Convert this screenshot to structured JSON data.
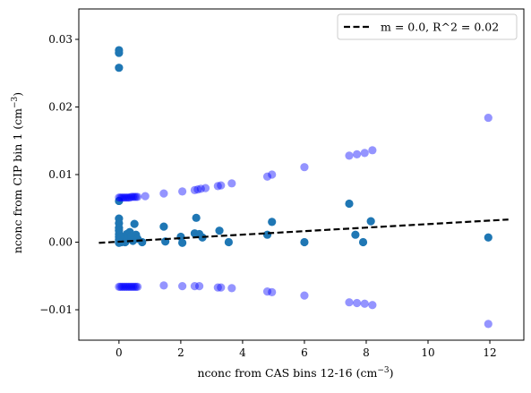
{
  "chart_data": {
    "type": "scatter",
    "xlabel": "nconc from CAS bins 12-16 (cm",
    "xlabel_sup": "−3",
    "xlabel_end": ")",
    "ylabel": "nconc from CIP bin 1 (cm",
    "ylabel_sup": "−3",
    "ylabel_end": ")",
    "xlim": [
      -1.3,
      13.1
    ],
    "ylim": [
      -0.0145,
      0.0345
    ],
    "x_ticks": [
      0,
      2,
      4,
      6,
      8,
      10,
      12
    ],
    "x_tick_labels": [
      "0",
      "2",
      "4",
      "6",
      "8",
      "10",
      "12"
    ],
    "y_ticks": [
      -0.01,
      0.0,
      0.01,
      0.02,
      0.03
    ],
    "y_tick_labels": [
      "−0.01",
      "0.00",
      "0.01",
      "0.02",
      "0.03"
    ],
    "grid": false,
    "legend_placement": "top-right",
    "legend": [
      {
        "label": "m = 0.0, R^2 = 0.02",
        "style": "dashed-line",
        "color": "#000000"
      }
    ],
    "fit_line": {
      "x": [
        -0.65,
        12.6
      ],
      "y": [
        -0.0001,
        0.00335
      ]
    },
    "series": [
      {
        "color": "#1f77b4",
        "opacity": 1.0,
        "points": [
          [
            0.0,
            0.0284
          ],
          [
            0.0,
            0.028
          ],
          [
            0.0,
            0.0258
          ],
          [
            0.0,
            0.0061
          ],
          [
            0.0,
            0.0035
          ],
          [
            0.0,
            0.0028
          ],
          [
            0.0,
            0.0021
          ],
          [
            0.0,
            0.0017
          ],
          [
            0.0,
            0.0012
          ],
          [
            0.0,
            0.0008
          ],
          [
            0.0,
            0.0004
          ],
          [
            0.0,
            0.0001
          ],
          [
            0.0,
            -0.0001
          ],
          [
            0.05,
            0.0006
          ],
          [
            0.08,
            0.0
          ],
          [
            0.1,
            0.0008
          ],
          [
            0.15,
            0.0003
          ],
          [
            0.2,
            0.0
          ],
          [
            0.25,
            0.0012
          ],
          [
            0.3,
            0.0006
          ],
          [
            0.35,
            0.0015
          ],
          [
            0.4,
            0.0009
          ],
          [
            0.45,
            0.0002
          ],
          [
            0.5,
            0.0027
          ],
          [
            0.55,
            0.0011
          ],
          [
            0.6,
            0.0005
          ],
          [
            0.75,
            0.0
          ],
          [
            1.45,
            0.0023
          ],
          [
            1.5,
            0.0001
          ],
          [
            2.0,
            0.0008
          ],
          [
            2.05,
            -0.0001
          ],
          [
            2.45,
            0.0013
          ],
          [
            2.5,
            0.0036
          ],
          [
            2.6,
            0.0012
          ],
          [
            2.7,
            0.0007
          ],
          [
            3.25,
            0.0017
          ],
          [
            3.55,
            0.0
          ],
          [
            4.8,
            0.0011
          ],
          [
            4.95,
            0.003
          ],
          [
            6.0,
            0.0
          ],
          [
            7.45,
            0.0057
          ],
          [
            7.65,
            0.0011
          ],
          [
            7.9,
            0.0
          ],
          [
            8.15,
            0.0031
          ],
          [
            11.95,
            0.0007
          ]
        ]
      },
      {
        "color": "#0000ff",
        "opacity": 0.42,
        "points": [
          [
            0.0,
            0.0066
          ],
          [
            0.05,
            0.0066
          ],
          [
            0.1,
            0.0066
          ],
          [
            0.15,
            0.0066
          ],
          [
            0.2,
            0.0066
          ],
          [
            0.25,
            0.0066
          ],
          [
            0.3,
            0.0066
          ],
          [
            0.35,
            0.0066
          ],
          [
            0.4,
            0.0067
          ],
          [
            0.45,
            0.0067
          ],
          [
            0.5,
            0.0067
          ],
          [
            0.55,
            0.0067
          ],
          [
            0.6,
            0.0067
          ],
          [
            0.85,
            0.0068
          ],
          [
            1.45,
            0.0072
          ],
          [
            2.05,
            0.0075
          ],
          [
            2.45,
            0.0077
          ],
          [
            2.55,
            0.0078
          ],
          [
            2.65,
            0.0079
          ],
          [
            2.8,
            0.008
          ],
          [
            3.2,
            0.0083
          ],
          [
            3.3,
            0.0084
          ],
          [
            3.65,
            0.0087
          ],
          [
            4.8,
            0.0097
          ],
          [
            4.95,
            0.01
          ],
          [
            6.0,
            0.0111
          ],
          [
            7.45,
            0.0128
          ],
          [
            7.7,
            0.013
          ],
          [
            7.95,
            0.0132
          ],
          [
            8.2,
            0.0136
          ],
          [
            11.95,
            0.0184
          ],
          [
            0.0,
            -0.0066
          ],
          [
            0.05,
            -0.0066
          ],
          [
            0.1,
            -0.0066
          ],
          [
            0.15,
            -0.0066
          ],
          [
            0.2,
            -0.0066
          ],
          [
            0.25,
            -0.0066
          ],
          [
            0.3,
            -0.0066
          ],
          [
            0.35,
            -0.0066
          ],
          [
            0.4,
            -0.0066
          ],
          [
            0.45,
            -0.0066
          ],
          [
            0.5,
            -0.0066
          ],
          [
            0.55,
            -0.0066
          ],
          [
            0.6,
            -0.0066
          ],
          [
            1.45,
            -0.0064
          ],
          [
            2.05,
            -0.0065
          ],
          [
            2.45,
            -0.0065
          ],
          [
            2.6,
            -0.0065
          ],
          [
            3.2,
            -0.0067
          ],
          [
            3.3,
            -0.0067
          ],
          [
            3.65,
            -0.0068
          ],
          [
            4.8,
            -0.0073
          ],
          [
            4.95,
            -0.0074
          ],
          [
            6.0,
            -0.0079
          ],
          [
            7.45,
            -0.0089
          ],
          [
            7.7,
            -0.009
          ],
          [
            7.95,
            -0.0091
          ],
          [
            8.2,
            -0.0093
          ],
          [
            11.95,
            -0.0121
          ]
        ]
      }
    ]
  }
}
